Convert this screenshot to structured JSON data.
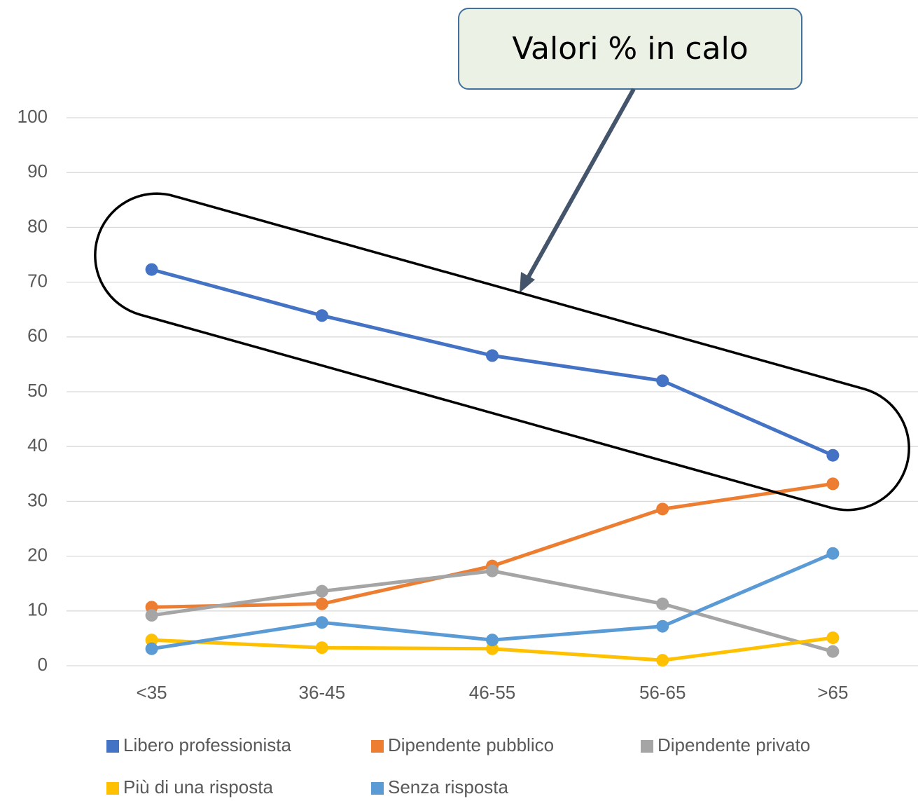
{
  "chart_data": {
    "type": "line",
    "annotation": "Valori % in calo",
    "categories": [
      "<35",
      "36-45",
      "46-55",
      "56-65",
      ">65"
    ],
    "series": [
      {
        "name": "Libero professionista",
        "color": "#4472c4",
        "values": [
          72.3,
          63.9,
          56.6,
          52.0,
          38.4
        ]
      },
      {
        "name": "Dipendente pubblico",
        "color": "#ed7d31",
        "values": [
          10.7,
          11.3,
          18.2,
          28.6,
          33.2
        ]
      },
      {
        "name": "Dipendente privato",
        "color": "#a5a5a5",
        "values": [
          9.2,
          13.6,
          17.3,
          11.3,
          2.6
        ]
      },
      {
        "name": "Più di una risposta",
        "color": "#ffc000",
        "values": [
          4.7,
          3.3,
          3.1,
          1.0,
          5.1
        ]
      },
      {
        "name": "Senza risposta",
        "color": "#5b9bd5",
        "values": [
          3.1,
          7.9,
          4.7,
          7.2,
          20.5
        ]
      }
    ],
    "ylim": [
      0,
      100
    ],
    "yticks": [
      0,
      10,
      20,
      30,
      40,
      50,
      60,
      70,
      80,
      90,
      100
    ],
    "grid": true
  }
}
